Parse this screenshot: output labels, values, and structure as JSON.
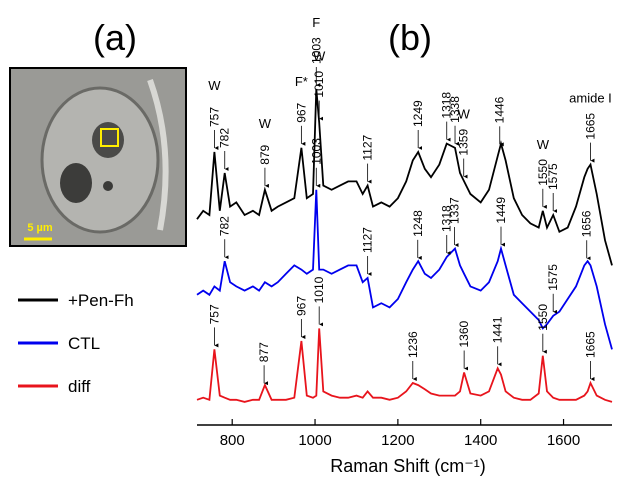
{
  "image_panel": {
    "label": "(a)",
    "scale_bar": "5 µm"
  },
  "chart_data": {
    "type": "line",
    "panel_label": "(b)",
    "x_label": "Raman Shift (cm⁻¹)",
    "xlim": [
      715,
      1717
    ],
    "xticks": [
      800,
      1000,
      1200,
      1400,
      1600
    ],
    "ylim": [
      0,
      100
    ],
    "legend": "left",
    "x": [
      715,
      730,
      745,
      757,
      770,
      782,
      795,
      810,
      830,
      850,
      865,
      879,
      895,
      910,
      930,
      950,
      967,
      980,
      995,
      1003,
      1010,
      1020,
      1040,
      1060,
      1080,
      1100,
      1115,
      1127,
      1140,
      1160,
      1180,
      1200,
      1220,
      1236,
      1249,
      1265,
      1280,
      1300,
      1318,
      1338,
      1350,
      1360,
      1375,
      1400,
      1420,
      1441,
      1449,
      1460,
      1480,
      1500,
      1520,
      1540,
      1550,
      1560,
      1575,
      1590,
      1610,
      1630,
      1650,
      1658,
      1665,
      1680,
      1700,
      1717
    ],
    "series": [
      {
        "name": "+Pen-Fh",
        "color": "#000000",
        "values": [
          49,
          51,
          50,
          65,
          51,
          60,
          52,
          53,
          50,
          51,
          50,
          56,
          51,
          52,
          53,
          54,
          66,
          54,
          55,
          80,
          72,
          57,
          56,
          57,
          58,
          58,
          55,
          57,
          52,
          53,
          52,
          54,
          58,
          63,
          65,
          61,
          59,
          62,
          67,
          66,
          60,
          58,
          55,
          53,
          56,
          64,
          67,
          63,
          54,
          50,
          48,
          47,
          51,
          47,
          50,
          46,
          47,
          52,
          59,
          61,
          62,
          55,
          44,
          38
        ],
        "peaks": [
          757,
          782,
          879,
          967,
          1003,
          1010,
          1127,
          1249,
          1318,
          1338,
          1359,
          1446,
          1550,
          1575,
          1665
        ],
        "notes": [
          {
            "x": 757,
            "text": "W"
          },
          {
            "x": 879,
            "text": "W"
          },
          {
            "x": 967,
            "text": "F*"
          },
          {
            "x": 1003,
            "text": "F"
          },
          {
            "x": 1010,
            "text": "W"
          },
          {
            "x": 1359,
            "text": "W"
          },
          {
            "x": 1550,
            "text": "W"
          },
          {
            "x": 1665,
            "text": "amide I"
          }
        ]
      },
      {
        "name": "CTL",
        "color": "#0000ee",
        "values": [
          31,
          32,
          31,
          33,
          32,
          39,
          34,
          33,
          32,
          33,
          32,
          34,
          33,
          34,
          36,
          38,
          37,
          36,
          37,
          56,
          37,
          37,
          36,
          37,
          38,
          38,
          34,
          35,
          28,
          29,
          28,
          30,
          34,
          37,
          39,
          36,
          35,
          37,
          40,
          42,
          38,
          36,
          33,
          32,
          34,
          39,
          42,
          38,
          31,
          29,
          27,
          25,
          23,
          24,
          26,
          27,
          30,
          33,
          38,
          39,
          38,
          33,
          24,
          18
        ],
        "peaks": [
          782,
          1003,
          1127,
          1248,
          1318,
          1337,
          1449,
          1575,
          1656
        ]
      },
      {
        "name": "diff",
        "color": "#e8141c",
        "values": [
          6,
          6.5,
          6,
          18,
          7,
          6.5,
          6,
          6,
          5.5,
          6,
          6,
          9.5,
          6,
          6,
          6,
          6.5,
          20,
          7,
          6.5,
          7,
          23,
          8,
          7,
          6.5,
          6.5,
          7,
          6.5,
          8,
          6.5,
          6.5,
          6,
          6.5,
          8,
          10,
          9.5,
          8.5,
          7.5,
          7,
          7,
          7,
          8,
          12.5,
          7.5,
          7,
          8,
          13.5,
          12,
          8,
          6.5,
          6,
          6,
          7.5,
          16.5,
          8,
          6.5,
          6,
          6,
          6,
          7,
          8,
          10,
          7,
          6,
          5.5
        ],
        "peaks": [
          757,
          877,
          967,
          1010,
          1236,
          1360,
          1441,
          1550,
          1665
        ]
      }
    ]
  }
}
